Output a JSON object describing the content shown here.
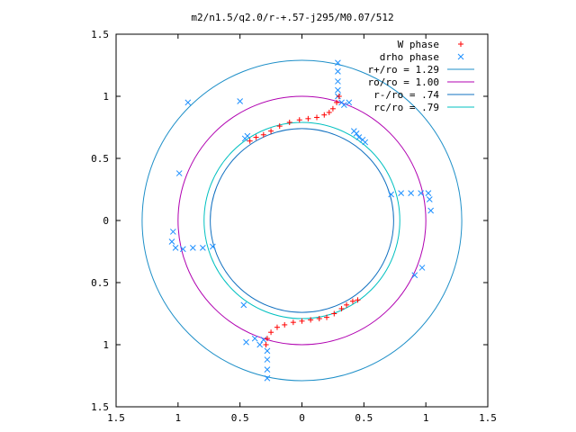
{
  "chart_data": {
    "type": "scatter",
    "title": "m2/n1.5/q2.0/r-+.57-j295/M0.07/512",
    "xlim": [
      -1.5,
      1.5
    ],
    "ylim": [
      -1.5,
      1.5
    ],
    "x_ticks": [
      -1.5,
      -1,
      -0.5,
      0,
      0.5,
      1,
      1.5
    ],
    "x_tick_labels": [
      "1.5",
      "1",
      "0.5",
      "0",
      "0.5",
      "1",
      "1.5"
    ],
    "y_ticks": [
      1.5,
      1,
      0.5,
      0,
      -0.5,
      -1,
      -1.5
    ],
    "y_tick_labels": [
      "1.5",
      "1",
      "0.5",
      "0",
      "0.5",
      "1",
      "1.5"
    ],
    "legend_position": "top-right",
    "colors": {
      "w_phase": "#ff0000",
      "drho_phase": "#1e90ff",
      "r_plus": "#1e8fc8",
      "r_o": "#b000b0",
      "r_minus": "#1070c0",
      "r_c": "#00c0c0"
    },
    "legend": [
      {
        "label": "W phase",
        "marker": "plus",
        "color": "#ff0000"
      },
      {
        "label": "drho phase",
        "marker": "cross",
        "color": "#1e90ff"
      },
      {
        "label": "r+/ro = 1.29",
        "marker": "line",
        "color": "#1e8fc8"
      },
      {
        "label": "ro/ro = 1.00",
        "marker": "line",
        "color": "#b000b0"
      },
      {
        "label": "r-/ro = .74",
        "marker": "line",
        "color": "#1070c0"
      },
      {
        "label": "rc/ro = .79",
        "marker": "line",
        "color": "#00c0c0"
      }
    ],
    "circles": [
      {
        "name": "r+/ro",
        "r": 1.29
      },
      {
        "name": "ro/ro",
        "r": 1.0
      },
      {
        "name": "r-/ro",
        "r": 0.74
      },
      {
        "name": "rc/ro",
        "r": 0.79
      }
    ],
    "w_phase": [
      [
        0.3,
        1.0
      ],
      [
        0.28,
        0.95
      ],
      [
        0.25,
        0.9
      ],
      [
        0.22,
        0.87
      ],
      [
        0.18,
        0.85
      ],
      [
        0.12,
        0.83
      ],
      [
        0.05,
        0.82
      ],
      [
        -0.02,
        0.81
      ],
      [
        -0.1,
        0.79
      ],
      [
        -0.18,
        0.76
      ],
      [
        -0.25,
        0.72
      ],
      [
        -0.31,
        0.69
      ],
      [
        -0.37,
        0.67
      ],
      [
        -0.42,
        0.64
      ],
      [
        -0.29,
        -1.0
      ],
      [
        -0.28,
        -0.95
      ],
      [
        -0.25,
        -0.9
      ],
      [
        -0.2,
        -0.86
      ],
      [
        -0.14,
        -0.84
      ],
      [
        -0.07,
        -0.82
      ],
      [
        0.0,
        -0.81
      ],
      [
        0.07,
        -0.8
      ],
      [
        0.14,
        -0.79
      ],
      [
        0.2,
        -0.78
      ],
      [
        0.26,
        -0.75
      ],
      [
        0.32,
        -0.71
      ],
      [
        0.36,
        -0.68
      ],
      [
        0.41,
        -0.65
      ],
      [
        0.45,
        -0.64
      ]
    ],
    "drho_phase": [
      [
        0.29,
        1.27
      ],
      [
        0.29,
        1.2
      ],
      [
        0.29,
        1.12
      ],
      [
        0.29,
        1.05
      ],
      [
        0.29,
        1.0
      ],
      [
        0.32,
        0.95
      ],
      [
        0.34,
        0.93
      ],
      [
        0.38,
        0.95
      ],
      [
        0.46,
        0.67
      ],
      [
        0.49,
        0.65
      ],
      [
        0.44,
        0.7
      ],
      [
        0.51,
        0.63
      ],
      [
        0.42,
        0.72
      ],
      [
        0.72,
        0.21
      ],
      [
        0.8,
        0.22
      ],
      [
        0.88,
        0.22
      ],
      [
        0.96,
        0.22
      ],
      [
        1.02,
        0.22
      ],
      [
        1.03,
        0.17
      ],
      [
        1.04,
        0.08
      ],
      [
        0.97,
        -0.38
      ],
      [
        0.91,
        -0.44
      ],
      [
        -0.72,
        -0.21
      ],
      [
        -0.8,
        -0.22
      ],
      [
        -0.88,
        -0.22
      ],
      [
        -0.96,
        -0.23
      ],
      [
        -1.02,
        -0.22
      ],
      [
        -1.04,
        -0.09
      ],
      [
        -1.05,
        -0.17
      ],
      [
        -0.99,
        0.38
      ],
      [
        -0.92,
        0.95
      ],
      [
        -0.5,
        0.96
      ],
      [
        -0.44,
        0.68
      ],
      [
        -0.46,
        0.66
      ],
      [
        -0.28,
        -1.27
      ],
      [
        -0.28,
        -1.2
      ],
      [
        -0.28,
        -1.12
      ],
      [
        -0.28,
        -1.05
      ],
      [
        -0.31,
        -0.96
      ],
      [
        -0.34,
        -1.0
      ],
      [
        -0.38,
        -0.95
      ],
      [
        -0.45,
        -0.98
      ],
      [
        -0.47,
        -0.68
      ]
    ]
  }
}
